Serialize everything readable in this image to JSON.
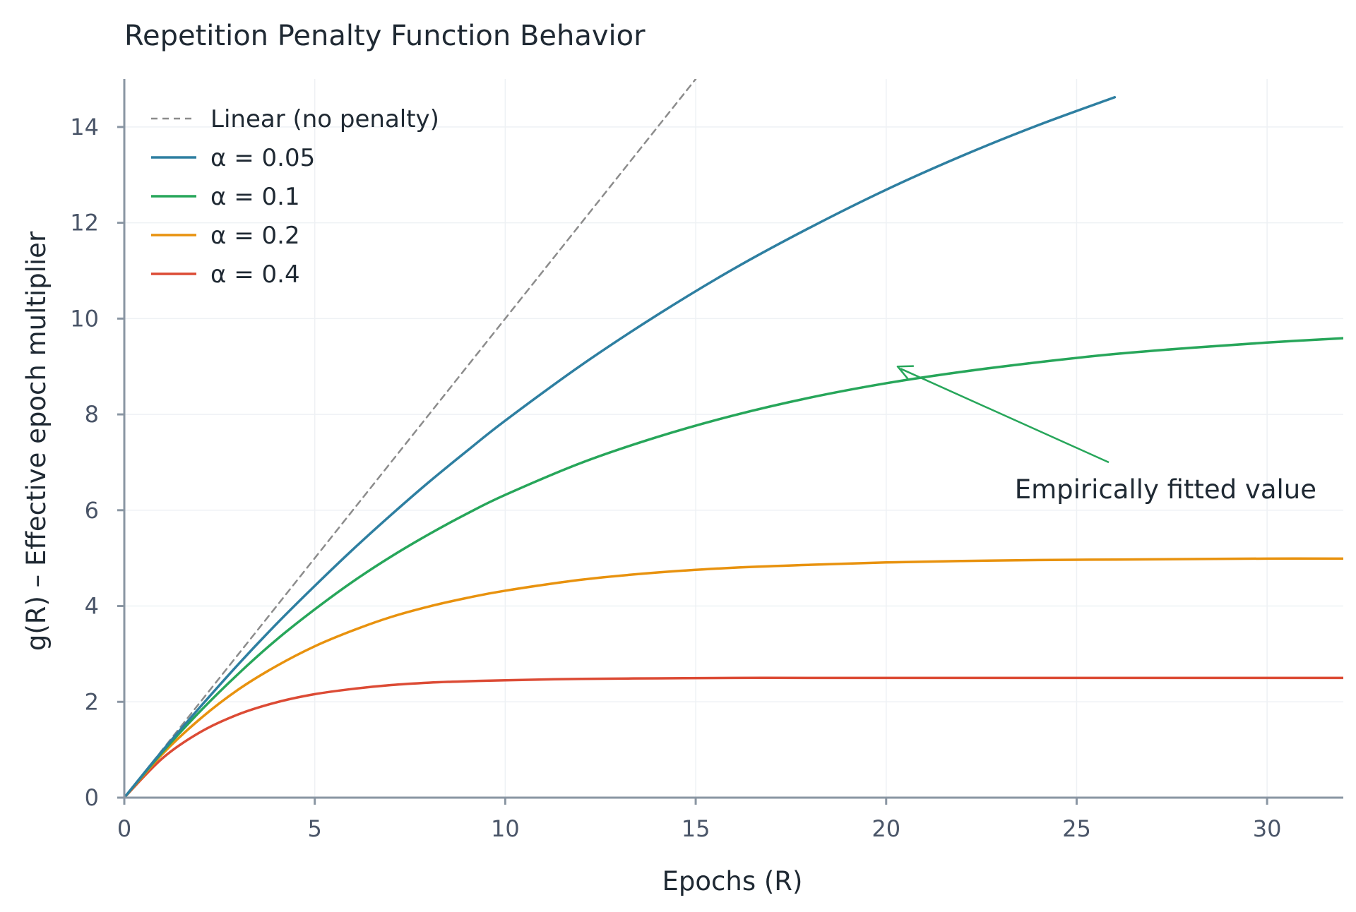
{
  "chart_data": {
    "type": "line",
    "title": "Repetition Penalty Function Behavior",
    "xlabel": "Epochs (R)",
    "ylabel": "g(R) – Effective epoch multiplier",
    "xlim": [
      0,
      32
    ],
    "ylim": [
      0,
      15
    ],
    "xticks": [
      0,
      5,
      10,
      15,
      20,
      25,
      30
    ],
    "yticks": [
      0,
      2,
      4,
      6,
      8,
      10,
      12,
      14
    ],
    "grid": true,
    "legend_position": "top-left",
    "series": [
      {
        "name": "Linear (no penalty)",
        "color": "#8c8c8c",
        "dashed": true,
        "x": [
          0,
          15
        ],
        "y": [
          0,
          15
        ]
      },
      {
        "name": "α = 0.05",
        "color": "#2e7fa1",
        "dashed": false,
        "x": [
          0,
          1,
          2,
          3,
          4,
          5,
          6,
          7,
          8,
          9,
          10,
          12,
          14,
          16,
          18,
          20,
          22,
          24,
          26
        ],
        "y": [
          0,
          0.98,
          1.9,
          2.79,
          3.63,
          4.42,
          5.18,
          5.9,
          6.59,
          7.24,
          7.87,
          9.03,
          10.08,
          11.04,
          11.9,
          12.69,
          13.4,
          14.04,
          14.62
        ]
      },
      {
        "name": "α = 0.1",
        "color": "#27a65a",
        "dashed": false,
        "x": [
          0,
          1,
          2,
          3,
          4,
          5,
          6,
          7,
          8,
          9,
          10,
          12,
          14,
          16,
          18,
          20,
          22,
          24,
          26,
          28,
          30,
          32
        ],
        "y": [
          0,
          0.95,
          1.81,
          2.59,
          3.3,
          3.93,
          4.51,
          5.03,
          5.5,
          5.93,
          6.32,
          6.99,
          7.53,
          7.98,
          8.35,
          8.65,
          8.89,
          9.09,
          9.26,
          9.39,
          9.5,
          9.59
        ]
      },
      {
        "name": "α = 0.2",
        "color": "#e8920e",
        "dashed": false,
        "x": [
          0,
          1,
          2,
          3,
          4,
          5,
          6,
          7,
          8,
          9,
          10,
          12,
          14,
          16,
          18,
          20,
          22,
          24,
          26,
          28,
          30,
          32
        ],
        "y": [
          0,
          0.91,
          1.65,
          2.26,
          2.75,
          3.16,
          3.49,
          3.77,
          3.99,
          4.17,
          4.32,
          4.55,
          4.7,
          4.8,
          4.86,
          4.91,
          4.94,
          4.96,
          4.97,
          4.98,
          4.99,
          4.99
        ]
      },
      {
        "name": "α = 0.4",
        "color": "#dc4b35",
        "dashed": false,
        "x": [
          0,
          1,
          2,
          3,
          4,
          5,
          6,
          7,
          8,
          9,
          10,
          12,
          14,
          16,
          18,
          20,
          22,
          24,
          26,
          28,
          30,
          32
        ],
        "y": [
          0,
          0.82,
          1.37,
          1.74,
          1.99,
          2.16,
          2.27,
          2.35,
          2.4,
          2.43,
          2.45,
          2.48,
          2.49,
          2.5,
          2.5,
          2.5,
          2.5,
          2.5,
          2.5,
          2.5,
          2.5,
          2.5
        ]
      }
    ],
    "annotations": [
      {
        "text": "Empirically fitted value",
        "target_x": 20.3,
        "target_y": 9.0,
        "text_x": 23.5,
        "text_y": 6.3,
        "color": "#27a65a"
      }
    ]
  }
}
